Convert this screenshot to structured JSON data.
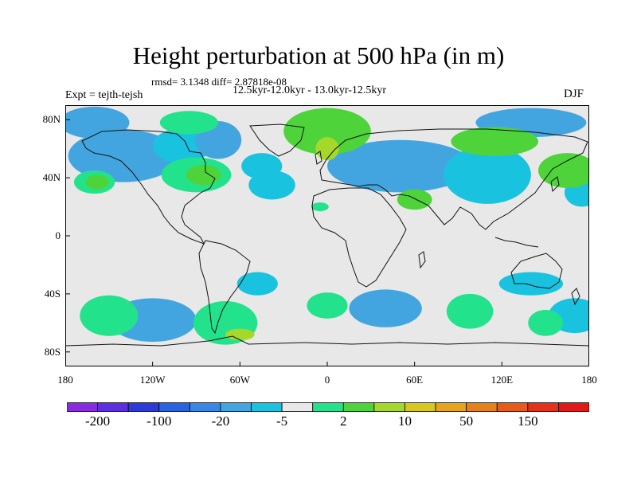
{
  "title": "Height perturbation at 500 hPa (in m)",
  "stats_line": "rmsd= 3.1348 diff= 2.87818e-08",
  "experiment": "Expt = tejth-tejsh",
  "periods": "12.5kyr-12.0kyr - 13.0kyr-12.5kyr",
  "season": "DJF",
  "map": {
    "projection": "cylindrical equidistant",
    "lon_range": [
      -180,
      180
    ],
    "lat_range": [
      -90,
      90
    ],
    "y_ticks": [
      {
        "lat": 80,
        "label": "80N"
      },
      {
        "lat": 40,
        "label": "40N"
      },
      {
        "lat": 0,
        "label": "0"
      },
      {
        "lat": -40,
        "label": "40S"
      },
      {
        "lat": -80,
        "label": "80S"
      }
    ],
    "x_ticks": [
      {
        "lon": -180,
        "label": "180"
      },
      {
        "lon": -120,
        "label": "120W"
      },
      {
        "lon": -60,
        "label": "60W"
      },
      {
        "lon": 0,
        "label": "0"
      },
      {
        "lon": 60,
        "label": "60E"
      },
      {
        "lon": 120,
        "label": "120E"
      },
      {
        "lon": 180,
        "label": "180"
      }
    ],
    "background_color": "#e8e8e8",
    "color_classes": {
      "lt_m5": "#42a5e0",
      "m5_m2": "#19c3e0",
      "p2_p5": "#23e28c",
      "p5_p10": "#4fd33a",
      "p10_p20": "#a5d82a"
    },
    "anomaly_regions": [
      {
        "lon": -160,
        "lat": 78,
        "rx": 24,
        "ry": 11,
        "cls": "lt_m5"
      },
      {
        "lon": -140,
        "lat": 55,
        "rx": 38,
        "ry": 18,
        "cls": "lt_m5"
      },
      {
        "lon": -100,
        "lat": 62,
        "rx": 20,
        "ry": 12,
        "cls": "m5_m2"
      },
      {
        "lon": -75,
        "lat": 66,
        "rx": 16,
        "ry": 13,
        "cls": "lt_m5"
      },
      {
        "lon": -38,
        "lat": 35,
        "rx": 16,
        "ry": 10,
        "cls": "m5_m2"
      },
      {
        "lon": -45,
        "lat": 48,
        "rx": 14,
        "ry": 9,
        "cls": "m5_m2"
      },
      {
        "lon": 50,
        "lat": 48,
        "rx": 50,
        "ry": 18,
        "cls": "lt_m5"
      },
      {
        "lon": 110,
        "lat": 42,
        "rx": 30,
        "ry": 20,
        "cls": "m5_m2"
      },
      {
        "lon": 140,
        "lat": 78,
        "rx": 38,
        "ry": 10,
        "cls": "lt_m5"
      },
      {
        "lon": 175,
        "lat": 30,
        "rx": 12,
        "ry": 10,
        "cls": "m5_m2"
      },
      {
        "lon": -120,
        "lat": -58,
        "rx": 30,
        "ry": 15,
        "cls": "lt_m5"
      },
      {
        "lon": -48,
        "lat": -33,
        "rx": 14,
        "ry": 8,
        "cls": "m5_m2"
      },
      {
        "lon": 40,
        "lat": -50,
        "rx": 25,
        "ry": 13,
        "cls": "lt_m5"
      },
      {
        "lon": 140,
        "lat": -33,
        "rx": 22,
        "ry": 8,
        "cls": "m5_m2"
      },
      {
        "lon": 170,
        "lat": -55,
        "rx": 18,
        "ry": 12,
        "cls": "m5_m2"
      },
      {
        "lon": -90,
        "lat": 42,
        "rx": 24,
        "ry": 12,
        "cls": "p2_p5"
      },
      {
        "lon": -85,
        "lat": 42,
        "rx": 12,
        "ry": 7,
        "cls": "p5_p10"
      },
      {
        "lon": -160,
        "lat": 37,
        "rx": 14,
        "ry": 8,
        "cls": "p2_p5"
      },
      {
        "lon": -158,
        "lat": 37,
        "rx": 8,
        "ry": 5,
        "cls": "p5_p10"
      },
      {
        "lon": -95,
        "lat": 78,
        "rx": 20,
        "ry": 8,
        "cls": "p2_p5"
      },
      {
        "lon": 0,
        "lat": 72,
        "rx": 30,
        "ry": 16,
        "cls": "p5_p10"
      },
      {
        "lon": 0,
        "lat": 60,
        "rx": 8,
        "ry": 8,
        "cls": "p10_p20"
      },
      {
        "lon": 115,
        "lat": 65,
        "rx": 30,
        "ry": 10,
        "cls": "p5_p10"
      },
      {
        "lon": 165,
        "lat": 45,
        "rx": 20,
        "ry": 12,
        "cls": "p5_p10"
      },
      {
        "lon": 60,
        "lat": 25,
        "rx": 12,
        "ry": 7,
        "cls": "p5_p10"
      },
      {
        "lon": -5,
        "lat": 20,
        "rx": 6,
        "ry": 3,
        "cls": "p2_p5"
      },
      {
        "lon": -150,
        "lat": -55,
        "rx": 20,
        "ry": 14,
        "cls": "p2_p5"
      },
      {
        "lon": -70,
        "lat": -60,
        "rx": 22,
        "ry": 15,
        "cls": "p2_p5"
      },
      {
        "lon": -60,
        "lat": -68,
        "rx": 10,
        "ry": 4,
        "cls": "p10_p20"
      },
      {
        "lon": 0,
        "lat": -48,
        "rx": 14,
        "ry": 9,
        "cls": "p2_p5"
      },
      {
        "lon": 98,
        "lat": -52,
        "rx": 16,
        "ry": 12,
        "cls": "p2_p5"
      },
      {
        "lon": 150,
        "lat": -60,
        "rx": 12,
        "ry": 9,
        "cls": "p2_p5"
      }
    ]
  },
  "colorbar": {
    "colors": [
      "#8a2be2",
      "#5b30e0",
      "#2c3bd8",
      "#2a62e0",
      "#3a86e6",
      "#42a5e0",
      "#19c3e0",
      "#e8e8e8",
      "#23e28c",
      "#4fd33a",
      "#a5d82a",
      "#d8c81e",
      "#e6a51a",
      "#e6801a",
      "#e65a1a",
      "#e2321a",
      "#e01818"
    ],
    "labels": [
      "-200",
      "-100",
      "-20",
      "-5",
      "2",
      "10",
      "50",
      "150"
    ]
  }
}
